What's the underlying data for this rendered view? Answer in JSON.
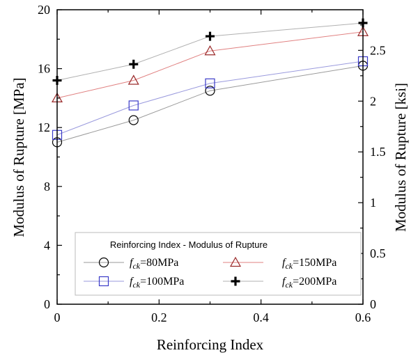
{
  "chart_data": {
    "type": "line",
    "xlabel": "Reinforcing Index",
    "ylabel": "Modulus of Rupture [MPa]",
    "y2label": "Modulus of Rupture [ksi]",
    "xlim": [
      0,
      0.6
    ],
    "ylim": [
      0,
      20
    ],
    "y2lim": [
      0,
      2.9
    ],
    "x_ticks": [
      "0",
      "0.2",
      "0.4",
      "0.6"
    ],
    "y_ticks": [
      "0",
      "4",
      "8",
      "12",
      "16",
      "20"
    ],
    "y2_ticks": [
      "0",
      "0.5",
      "1",
      "1.5",
      "2",
      "2.5"
    ],
    "grid": false,
    "legend": {
      "title": "Reinforcing Index - Modulus of Rupture",
      "position": "bottom-right",
      "entries": [
        {
          "prefix": "f",
          "sub": "ck",
          "suffix": "=80MPa"
        },
        {
          "prefix": "f",
          "sub": "ck",
          "suffix": "=150MPa"
        },
        {
          "prefix": "f",
          "sub": "ck",
          "suffix": "=100MPa"
        },
        {
          "prefix": "f",
          "sub": "ck",
          "suffix": "=200MPa"
        }
      ]
    },
    "x": [
      0,
      0.15,
      0.3,
      0.6
    ],
    "series": [
      {
        "name": "fck=80MPa",
        "marker": "circle",
        "color": "#000000",
        "line_color": "#9a9a9a",
        "values": [
          11.0,
          12.5,
          14.5,
          16.2
        ]
      },
      {
        "name": "fck=100MPa",
        "marker": "square",
        "color": "#3a3ac8",
        "line_color": "#9999dd",
        "values": [
          11.5,
          13.5,
          15.0,
          16.5
        ]
      },
      {
        "name": "fck=150MPa",
        "marker": "triangle",
        "color": "#9a2a2a",
        "line_color": "#e08080",
        "values": [
          14.0,
          15.2,
          17.2,
          18.5
        ]
      },
      {
        "name": "fck=200MPa",
        "marker": "plus",
        "color": "#000000",
        "line_color": "#b0b0b0",
        "values": [
          15.2,
          16.3,
          18.2,
          19.1
        ]
      }
    ]
  }
}
